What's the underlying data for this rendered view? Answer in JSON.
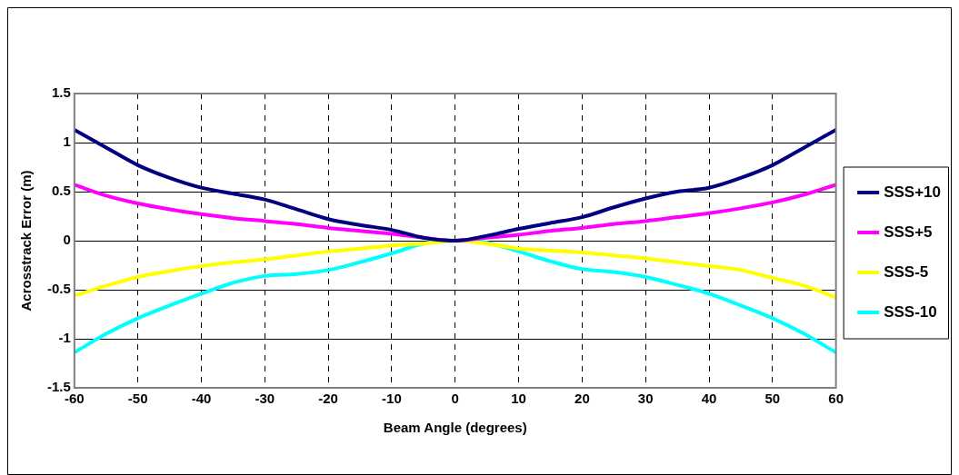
{
  "chart_data": {
    "type": "line",
    "xlabel": "Beam Angle (degrees)",
    "ylabel": "Acrosstrack Error (m)",
    "x": [
      -60,
      -55,
      -50,
      -45,
      -40,
      -35,
      -30,
      -25,
      -20,
      -15,
      -10,
      -5,
      0,
      5,
      10,
      15,
      20,
      25,
      30,
      35,
      40,
      45,
      50,
      55,
      60
    ],
    "series": [
      {
        "name": "SSS+10",
        "color": "#000080",
        "values": [
          1.13,
          0.95,
          0.77,
          0.64,
          0.54,
          0.48,
          0.42,
          0.32,
          0.22,
          0.16,
          0.11,
          0.03,
          0,
          0.05,
          0.12,
          0.18,
          0.24,
          0.34,
          0.43,
          0.5,
          0.54,
          0.64,
          0.77,
          0.95,
          1.13
        ]
      },
      {
        "name": "SSS+5",
        "color": "#ff00ff",
        "values": [
          0.57,
          0.46,
          0.38,
          0.32,
          0.27,
          0.23,
          0.2,
          0.17,
          0.13,
          0.1,
          0.07,
          0.03,
          0,
          0.03,
          0.06,
          0.1,
          0.13,
          0.17,
          0.2,
          0.24,
          0.28,
          0.33,
          0.39,
          0.47,
          0.57
        ]
      },
      {
        "name": "SSS-5",
        "color": "#ffff00",
        "values": [
          -0.56,
          -0.46,
          -0.37,
          -0.31,
          -0.26,
          -0.22,
          -0.19,
          -0.15,
          -0.11,
          -0.08,
          -0.05,
          -0.03,
          0,
          -0.03,
          -0.08,
          -0.1,
          -0.12,
          -0.15,
          -0.18,
          -0.22,
          -0.26,
          -0.3,
          -0.38,
          -0.46,
          -0.58
        ]
      },
      {
        "name": "SSS-10",
        "color": "#00ffff",
        "values": [
          -1.14,
          -0.95,
          -0.79,
          -0.66,
          -0.54,
          -0.43,
          -0.36,
          -0.34,
          -0.3,
          -0.22,
          -0.13,
          -0.03,
          0,
          -0.02,
          -0.11,
          -0.21,
          -0.29,
          -0.32,
          -0.37,
          -0.45,
          -0.54,
          -0.66,
          -0.79,
          -0.95,
          -1.14
        ]
      }
    ],
    "xlim": [
      -60,
      60
    ],
    "xticks": [
      -60,
      -50,
      -40,
      -30,
      -20,
      -10,
      0,
      10,
      20,
      30,
      40,
      50,
      60
    ],
    "ylim": [
      -1.5,
      1.5
    ],
    "yticks": [
      -1.5,
      -1,
      -0.5,
      0,
      0.5,
      1,
      1.5
    ],
    "grid": true,
    "legend": "right",
    "marker": "none",
    "line_style": "solid"
  }
}
